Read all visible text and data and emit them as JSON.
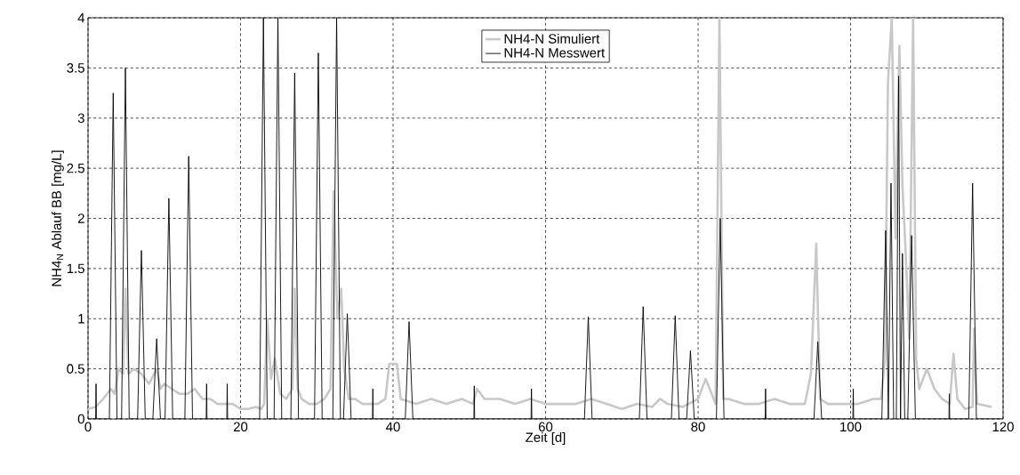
{
  "chart_data": {
    "type": "line",
    "xlabel": "Zeit [d]",
    "ylabel": "NH4$_{N}$ Ablauf BB [mg/L]",
    "xlim": [
      0,
      120
    ],
    "ylim": [
      0,
      4
    ],
    "xticks": [
      0,
      20,
      40,
      60,
      80,
      100,
      120
    ],
    "yticks": [
      0,
      0.5,
      1,
      1.5,
      2,
      2.5,
      3,
      3.5,
      4
    ],
    "grid": true,
    "legend": "top",
    "line_style": "solid",
    "marker": "none",
    "series": [
      {
        "name": "NH4-N Simuliert",
        "color": "#c8c8c8",
        "x": [
          0,
          1,
          2,
          3,
          3.5,
          4,
          4.6,
          4.9,
          5.3,
          6,
          7,
          8,
          9,
          9.5,
          10,
          11,
          12,
          13,
          14,
          15,
          16,
          17,
          18,
          19,
          20,
          21,
          22,
          22.7,
          23.1,
          23.5,
          24,
          24.5,
          25.2,
          26,
          26.8,
          27.1,
          27.5,
          28,
          29,
          30,
          31,
          31.8,
          32.2,
          32.7,
          33.2,
          33.6,
          34.2,
          35,
          36,
          38,
          39,
          39.5,
          40,
          40.5,
          41,
          43,
          45,
          47,
          49,
          50.5,
          51,
          52,
          54,
          56,
          58,
          60,
          62,
          64,
          66,
          68,
          70,
          72,
          74,
          75,
          76,
          78,
          80,
          81,
          82.3,
          82.8,
          83.3,
          84,
          86,
          88,
          90,
          92,
          94,
          94.8,
          95.5,
          96,
          97,
          99,
          101,
          103,
          104,
          104.5,
          104.9,
          105.4,
          105.9,
          106.4,
          106.8,
          107.2,
          107.7,
          108.2,
          108.6,
          109,
          110,
          111,
          112,
          113,
          113.5,
          114,
          115,
          116,
          116.2,
          116.6,
          118.5
        ],
        "values": [
          0.1,
          0.12,
          0.2,
          0.3,
          0.25,
          0.5,
          0.45,
          1.3,
          0.45,
          0.5,
          0.45,
          0.35,
          0.5,
          0.3,
          0.35,
          0.3,
          0.25,
          0.25,
          0.3,
          0.2,
          0.2,
          0.15,
          0.15,
          0.15,
          0.1,
          0.1,
          0.12,
          0.1,
          0.15,
          1.0,
          0.4,
          0.6,
          0.25,
          0.2,
          0.3,
          1.3,
          0.3,
          0.2,
          0.15,
          0.15,
          0.2,
          0.3,
          2.27,
          1.0,
          1.3,
          0.5,
          0.2,
          0.2,
          0.15,
          0.15,
          0.2,
          0.55,
          0.55,
          0.55,
          0.2,
          0.15,
          0.2,
          0.15,
          0.2,
          0.15,
          0.3,
          0.2,
          0.2,
          0.15,
          0.2,
          0.15,
          0.15,
          0.15,
          0.2,
          0.15,
          0.1,
          0.15,
          0.12,
          0.2,
          0.15,
          0.12,
          0.2,
          0.4,
          0.15,
          4,
          0.2,
          0.2,
          0.15,
          0.15,
          0.2,
          0.15,
          0.15,
          0.45,
          1.75,
          0.2,
          0.15,
          0.15,
          0.15,
          0.2,
          0.2,
          0.6,
          3.35,
          4,
          1.8,
          3.72,
          2.33,
          1.7,
          0.8,
          4,
          0.6,
          0.3,
          0.5,
          0.3,
          0.2,
          0.15,
          0.65,
          0.2,
          0.1,
          0.12,
          0.9,
          0.15,
          0.12
        ]
      },
      {
        "name": "NH4-N Messwert",
        "color": "#000000",
        "x": [
          0,
          1,
          1.05,
          1.1,
          2.8,
          3.3,
          3.8,
          4.4,
          4.9,
          5.4,
          6.5,
          7.0,
          7.5,
          8.5,
          9.0,
          9.5,
          10.1,
          10.6,
          11.1,
          12.7,
          13.2,
          13.7,
          15.5,
          15.55,
          15.6,
          18.2,
          18.25,
          18.3,
          22.5,
          23.0,
          23.5,
          24.4,
          24.9,
          25.4,
          26.6,
          27.1,
          27.6,
          29.7,
          30.2,
          30.7,
          32.1,
          32.6,
          33.1,
          33.5,
          34.0,
          34.5,
          37.3,
          37.35,
          37.4,
          41.6,
          42.1,
          42.6,
          50.6,
          50.65,
          50.7,
          58.1,
          58.15,
          58.2,
          65.1,
          65.6,
          66.1,
          72.3,
          72.8,
          73.3,
          76.5,
          77.0,
          77.5,
          78.5,
          79.0,
          79.5,
          82.4,
          82.9,
          83.4,
          88.8,
          88.85,
          88.9,
          95.2,
          95.7,
          96.2,
          100.3,
          100.35,
          100.4,
          104.1,
          104.6,
          104.95,
          105.3,
          105.65,
          106.0,
          106.3,
          106.55,
          106.8,
          107.1,
          107.5,
          108.0,
          108.5,
          112.9,
          112.95,
          113.0,
          115.5,
          116.0,
          116.5,
          120
        ],
        "values": [
          0,
          0,
          0.35,
          0,
          0,
          3.25,
          0,
          0,
          3.5,
          0,
          0,
          1.68,
          0,
          0,
          0.8,
          0,
          0,
          2.2,
          0,
          0,
          2.62,
          0,
          0,
          0.35,
          0,
          0,
          0.35,
          0,
          0,
          4,
          0,
          0,
          4,
          0,
          0,
          3.45,
          0,
          0,
          3.65,
          0,
          0,
          4,
          0,
          0,
          1.05,
          0,
          0,
          0.3,
          0,
          0,
          0.97,
          0,
          0,
          0.33,
          0,
          0,
          0.3,
          0,
          0,
          1.02,
          0,
          0,
          1.12,
          0,
          0,
          1.03,
          0,
          0,
          0.68,
          0,
          0,
          2.0,
          0,
          0,
          0.3,
          0,
          0,
          0.77,
          0,
          0,
          0.3,
          0,
          0,
          1.88,
          0,
          2.35,
          0,
          0,
          3.42,
          0,
          1.65,
          0,
          0,
          1.83,
          0,
          0,
          0.25,
          0,
          0,
          2.35,
          0,
          0
        ]
      }
    ]
  }
}
